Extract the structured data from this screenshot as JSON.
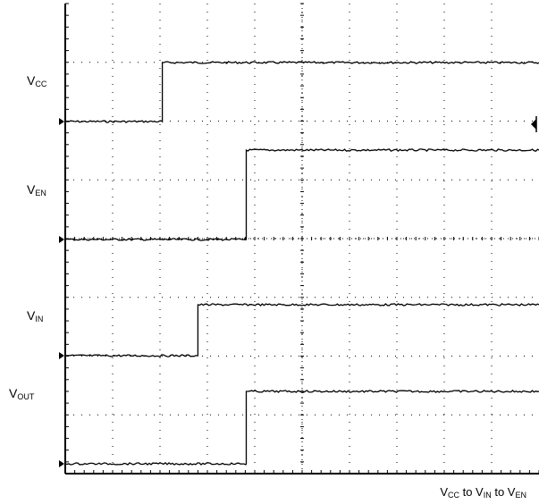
{
  "chart_data": {
    "type": "line",
    "title": "",
    "caption": {
      "p1": "V",
      "s1": "CC",
      "p2": " to V",
      "s2": "IN",
      "p3": " to V",
      "s3": "EN"
    },
    "grid": true,
    "divisions": {
      "x": 10,
      "y": 8
    },
    "series": [
      {
        "label_main": "V",
        "label_sub": "CC",
        "low": 0,
        "high": 1,
        "step_at": 2.05
      },
      {
        "label_main": "V",
        "label_sub": "EN",
        "low": 0,
        "high": 1,
        "step_at": 3.82
      },
      {
        "label_main": "V",
        "label_sub": "IN",
        "low": 0,
        "high": 1,
        "step_at": 2.8
      },
      {
        "label_main": "V",
        "label_sub": "OUT",
        "low": 0,
        "high": 1,
        "step_at": 3.82
      }
    ],
    "colors": {
      "trace": "#000000",
      "grid": "#000000",
      "background": "#ffffff"
    }
  }
}
